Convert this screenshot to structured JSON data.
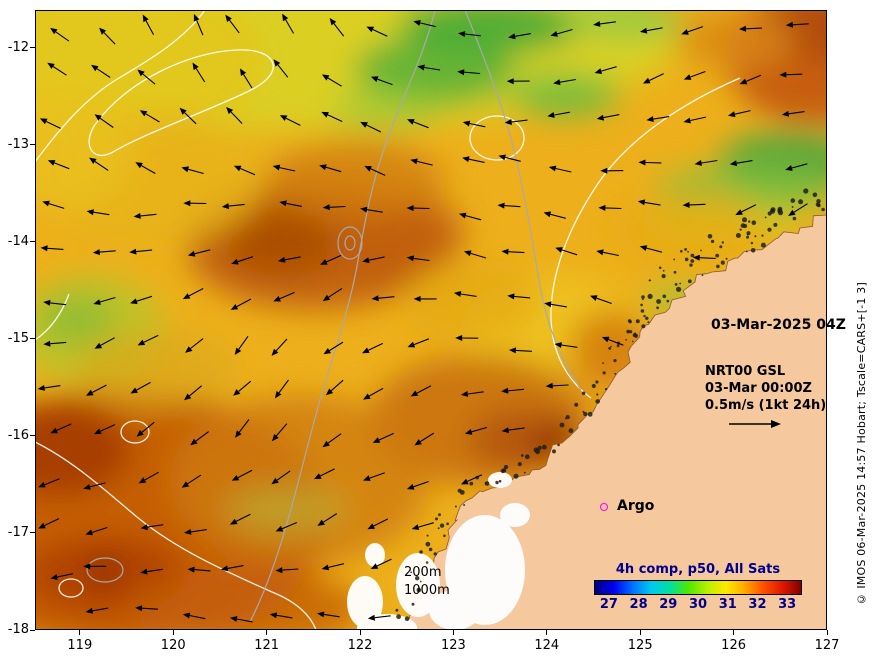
{
  "map": {
    "x_axis": {
      "ticks": [
        "119",
        "120",
        "121",
        "122",
        "123",
        "124",
        "125",
        "126",
        "127"
      ],
      "lon_min": 118.52,
      "lon_max": 127
    },
    "y_axis": {
      "ticks": [
        "-12",
        "-13",
        "-14",
        "-15",
        "-16",
        "-17",
        "-18"
      ],
      "lat_min": -18,
      "lat_max": -11.61
    }
  },
  "annotations": {
    "timestamp": "03-Mar-2025 04Z",
    "current_source": "NRT00 GSL",
    "current_time": "03-Mar 00:00Z",
    "current_scale": "0.5m/s (1kt 24h)",
    "argo_label": "Argo",
    "isobath_shallow": "200m",
    "isobath_deep": "1000m",
    "credit": "© IMOS 06-Mar-2025 14:57 Hobart; Tscale=CARS+[-1 3]"
  },
  "colorbar": {
    "title": "4h comp, p50, All Sats",
    "tick_labels": [
      "27",
      "28",
      "29",
      "30",
      "31",
      "32",
      "33"
    ],
    "gradient": [
      "#000080",
      "#0000f0",
      "#0070ff",
      "#00c8f0",
      "#00e0a0",
      "#50e800",
      "#b8f000",
      "#ffe800",
      "#ffa800",
      "#ff5000",
      "#e01800",
      "#800000"
    ]
  },
  "colors": {
    "land": "#f5c89e",
    "sea_base": "#edb01c",
    "argo_marker": "#ff00ff",
    "colorbar_text": "#00008b"
  }
}
